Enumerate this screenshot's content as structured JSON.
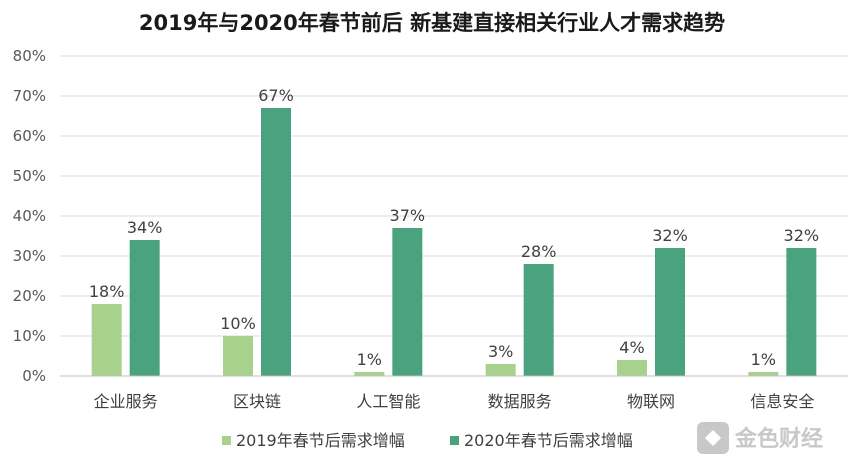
{
  "chart_data": {
    "type": "bar",
    "title": "2019年与2020年春节前后  新基建直接相关行业人才需求趋势",
    "categories": [
      "企业服务",
      "区块链",
      "人工智能",
      "数据服务",
      "物联网",
      "信息安全"
    ],
    "series": [
      {
        "name": "2019年春节后需求增幅",
        "values": [
          18,
          10,
          1,
          3,
          4,
          1
        ],
        "labels": [
          "18%",
          "10%",
          "1%",
          "3%",
          "4%",
          "1%"
        ],
        "color": "#a9d18e"
      },
      {
        "name": "2020年春节后需求增幅",
        "values": [
          34,
          67,
          37,
          28,
          32,
          32
        ],
        "labels": [
          "34%",
          "67%",
          "37%",
          "28%",
          "32%",
          "32%"
        ],
        "color": "#4aa37e"
      }
    ],
    "ylim": [
      0,
      80
    ],
    "yticks": [
      "0%",
      "10%",
      "20%",
      "30%",
      "40%",
      "50%",
      "60%",
      "70%",
      "80%"
    ],
    "xlabel": "",
    "ylabel": "",
    "grid": true,
    "legend_position": "bottom"
  },
  "watermark": {
    "text": "金色财经",
    "color": "#c8c8c8"
  }
}
